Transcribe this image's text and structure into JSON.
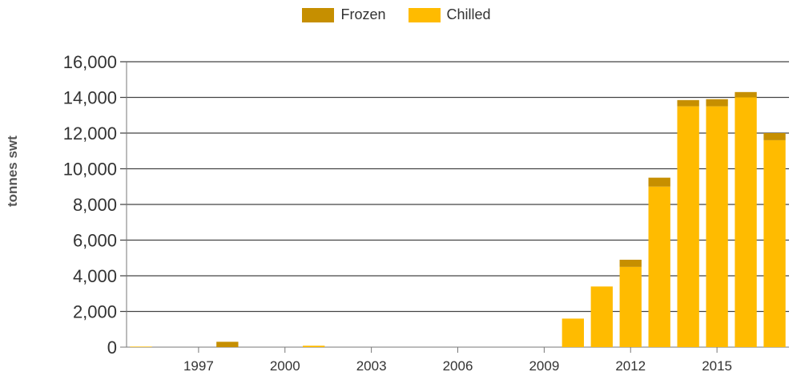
{
  "chart_data": {
    "type": "bar",
    "stacked": true,
    "ylabel": "tonnes swt",
    "xlabel": "",
    "ylim": [
      0,
      16000
    ],
    "yticks": [
      0,
      2000,
      4000,
      6000,
      8000,
      10000,
      12000,
      14000,
      16000
    ],
    "ytick_labels": [
      "0",
      "2,000",
      "4,000",
      "6,000",
      "8,000",
      "10,000",
      "12,000",
      "14,000",
      "16,000"
    ],
    "xtick_labels": [
      "1997",
      "2000",
      "2003",
      "2006",
      "2009",
      "2012",
      "2015"
    ],
    "grid": true,
    "legend_position": "top-center",
    "categories": [
      "1995",
      "1996",
      "1997",
      "1998",
      "1999",
      "2000",
      "2001",
      "2002",
      "2003",
      "2004",
      "2005",
      "2006",
      "2007",
      "2008",
      "2009",
      "2010",
      "2011",
      "2012",
      "2013",
      "2014",
      "2015",
      "2016",
      "2017"
    ],
    "series": [
      {
        "name": "Chilled",
        "color": "#FFBB00",
        "values": [
          30,
          0,
          0,
          0,
          0,
          0,
          80,
          0,
          0,
          0,
          0,
          0,
          0,
          0,
          0,
          1600,
          3400,
          4500,
          9000,
          13500,
          13500,
          14000,
          11600
        ]
      },
      {
        "name": "Frozen",
        "color": "#C68F00",
        "values": [
          0,
          0,
          0,
          300,
          0,
          0,
          0,
          0,
          0,
          0,
          0,
          0,
          0,
          0,
          0,
          0,
          0,
          400,
          500,
          350,
          400,
          300,
          400
        ]
      }
    ]
  },
  "legend": {
    "frozen_label": "Frozen",
    "chilled_label": "Chilled"
  }
}
